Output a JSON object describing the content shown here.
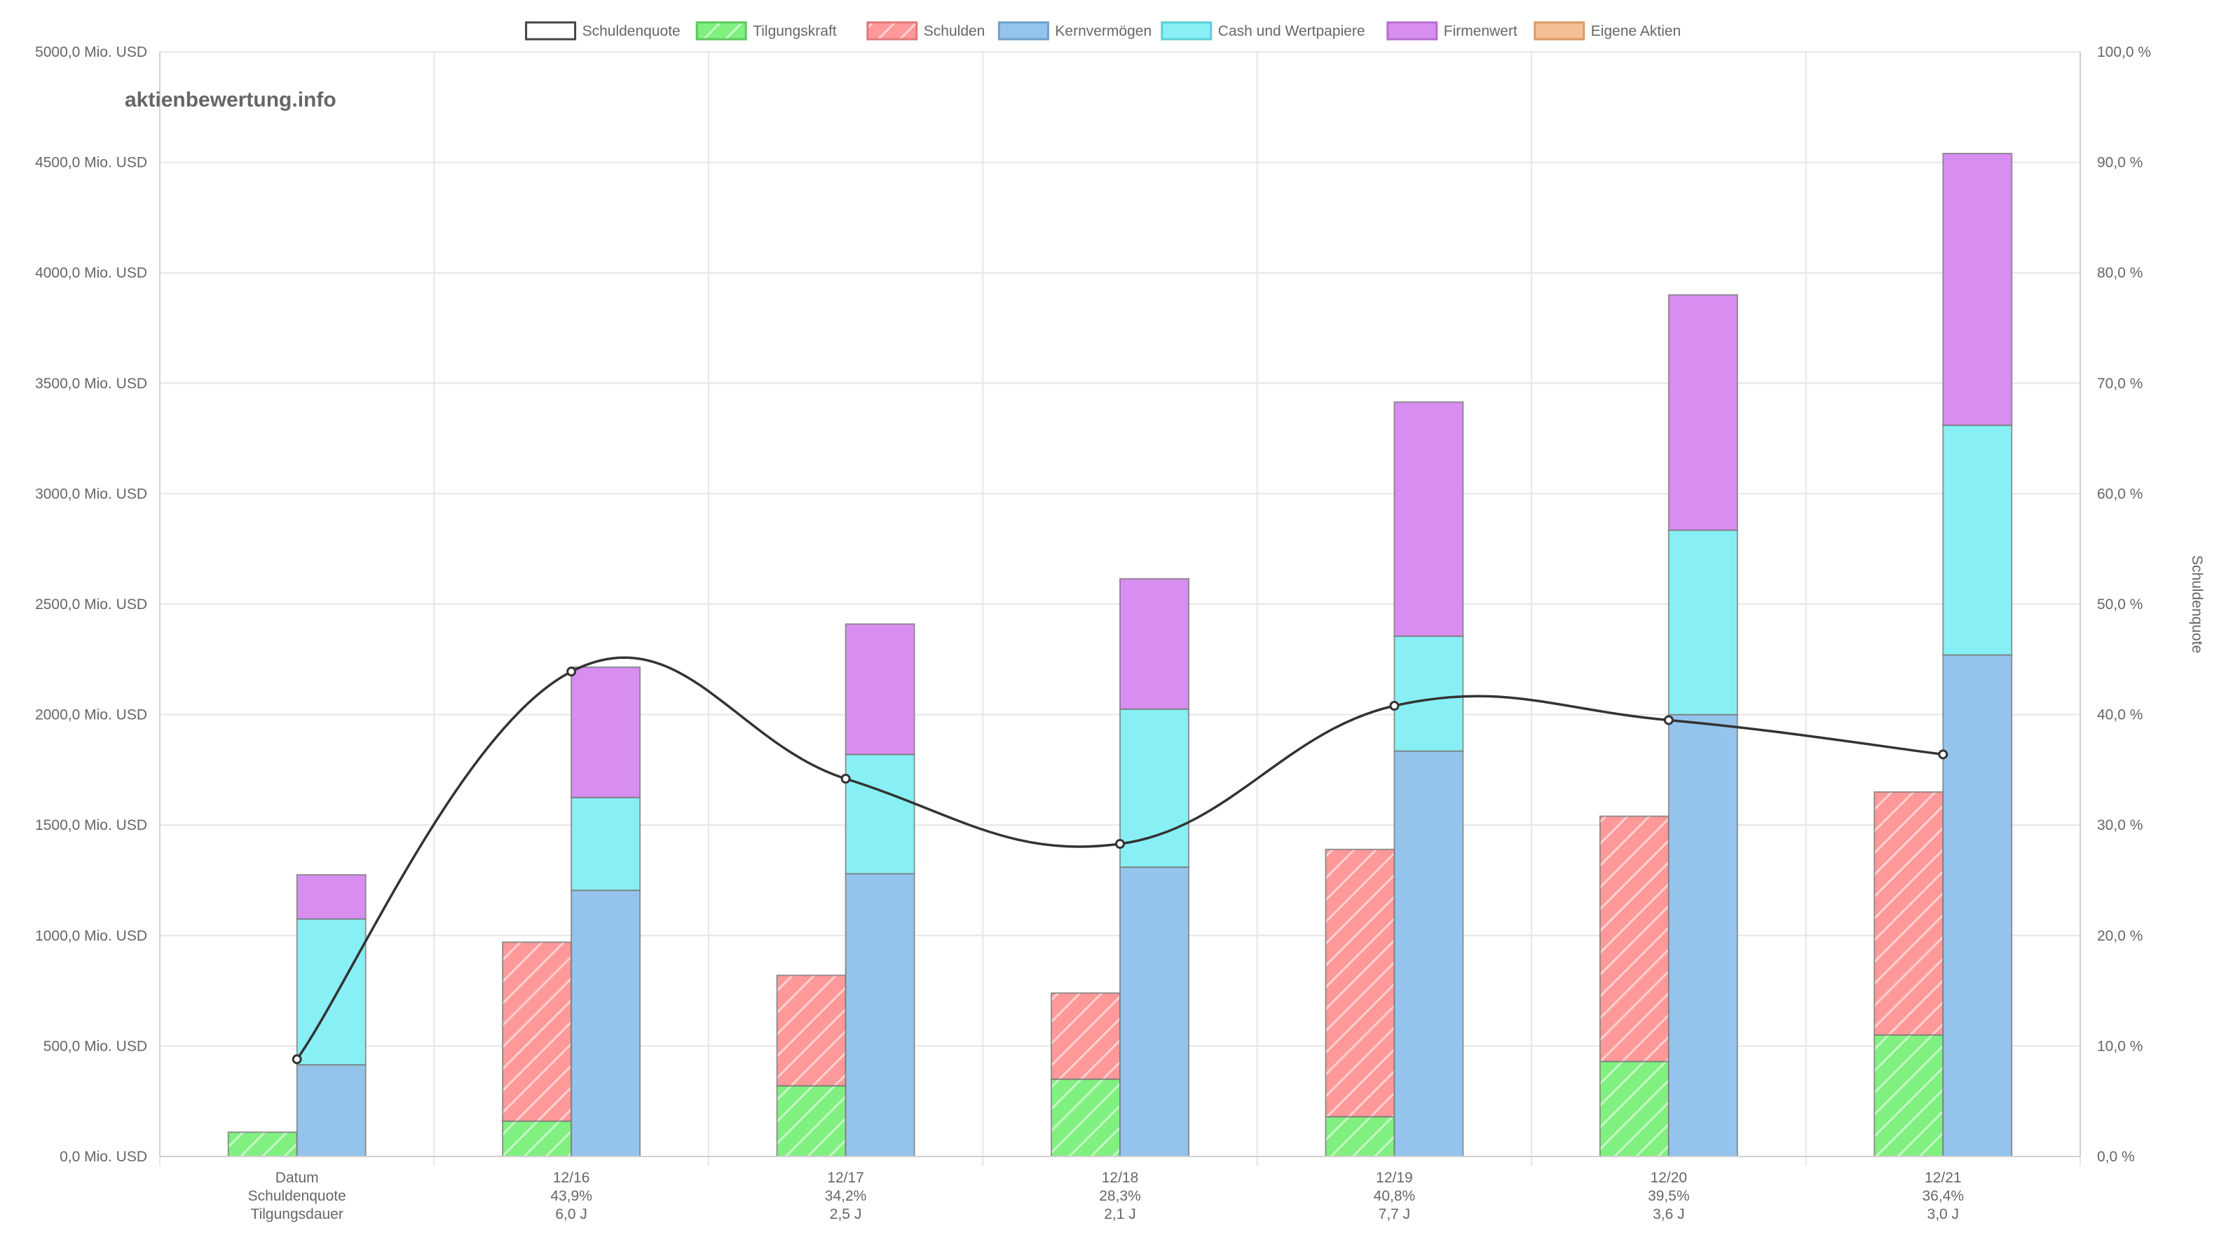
{
  "watermark": "aktienbewertung.info",
  "chart_data": {
    "type": "bar",
    "stacked_groups": true,
    "categories": [
      "Datum",
      "12/16",
      "12/17",
      "12/18",
      "12/19",
      "12/20",
      "12/21"
    ],
    "category_rows": [
      [
        "Datum",
        "Schuldenquote",
        "Tilgungsdauer"
      ],
      [
        "12/16",
        "43,9%",
        "6,0 J"
      ],
      [
        "12/17",
        "34,2%",
        "2,5 J"
      ],
      [
        "12/18",
        "28,3%",
        "2,1 J"
      ],
      [
        "12/19",
        "40,8%",
        "7,7 J"
      ],
      [
        "12/20",
        "39,5%",
        "3,6 J"
      ],
      [
        "12/21",
        "36,4%",
        "3,0 J"
      ]
    ],
    "legend": {
      "position": "top",
      "items": [
        {
          "name": "Schuldenquote",
          "color": "#ffffff",
          "border": "#444444",
          "hatch": false
        },
        {
          "name": "Tilgungskraft",
          "color": "#80f080",
          "border": "#5cc85c",
          "hatch": true
        },
        {
          "name": "Schulden",
          "color": "#ff9999",
          "border": "#e07a7a",
          "hatch": true
        },
        {
          "name": "Kernvermögen",
          "color": "#94c4ec",
          "border": "#6f9fc8",
          "hatch": false
        },
        {
          "name": "Cash und Wertpapiere",
          "color": "#88f0f4",
          "border": "#5ccfd6",
          "hatch": false
        },
        {
          "name": "Firmenwert",
          "color": "#d88ef0",
          "border": "#b56ed0",
          "hatch": false
        },
        {
          "name": "Eigene Aktien",
          "color": "#f4bf94",
          "border": "#d99a6a",
          "hatch": false
        }
      ]
    },
    "left_stack": [
      {
        "name": "Tilgungskraft",
        "values": [
          110,
          160,
          320,
          350,
          180,
          430,
          550
        ]
      },
      {
        "name": "Schulden",
        "values": [
          0,
          810,
          500,
          390,
          1210,
          1110,
          1100
        ]
      }
    ],
    "right_stack": [
      {
        "name": "Kernvermögen",
        "values": [
          415,
          1205,
          1280,
          1310,
          1835,
          2000,
          2270
        ]
      },
      {
        "name": "Cash und Wertpapiere",
        "values": [
          660,
          420,
          540,
          715,
          520,
          835,
          1040
        ]
      },
      {
        "name": "Firmenwert",
        "values": [
          200,
          590,
          590,
          590,
          1060,
          1065,
          1230
        ]
      },
      {
        "name": "Eigene Aktien",
        "values": [
          0,
          0,
          0,
          0,
          0,
          0,
          0
        ]
      }
    ],
    "line": {
      "name": "Schuldenquote",
      "axis": "right",
      "values": [
        8.8,
        43.9,
        34.2,
        28.3,
        40.8,
        39.5,
        36.4
      ],
      "color": "#333333"
    },
    "y_left": {
      "min": 0,
      "max": 5000,
      "step": 500,
      "unit": "Mio. USD"
    },
    "y_right": {
      "min": 0,
      "max": 100,
      "step": 10,
      "unit": "%",
      "label": "Schuldenquote"
    },
    "grid": true
  }
}
